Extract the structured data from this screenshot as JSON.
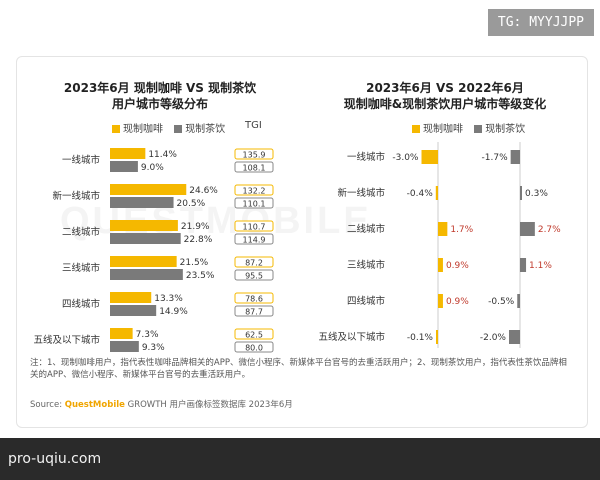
{
  "watermark": "QUESTMOBILE",
  "badge": "TG: MYYJJPP",
  "footer_text": "pro-uqiu.com",
  "colors": {
    "coffee": "#f5b800",
    "tea": "#7a7a7a",
    "pos": "#c0392b",
    "neg": "#333333"
  },
  "left": {
    "title_line1": "2023年6月 现制咖啡 VS 现制茶饮",
    "title_line2": "用户城市等级分布",
    "legend_coffee": "现制咖啡",
    "legend_tea": "现制茶饮",
    "tgi_label": "TGI"
  },
  "right": {
    "title_line1": "2023年6月 VS 2022年6月",
    "title_line2": "现制咖啡&现制茶饮用户城市等级变化",
    "legend_coffee": "现制咖啡",
    "legend_tea": "现制茶饮"
  },
  "chart_data": [
    {
      "type": "bar",
      "title": "2023年6月 现制咖啡 VS 现制茶饮 用户城市等级分布",
      "categories": [
        "一线城市",
        "新一线城市",
        "二线城市",
        "三线城市",
        "四线城市",
        "五线及以下城市"
      ],
      "series": [
        {
          "name": "现制咖啡",
          "values": [
            11.4,
            24.6,
            21.9,
            21.5,
            13.3,
            7.3
          ],
          "labels": [
            "11.4%",
            "24.6%",
            "21.9%",
            "21.5%",
            "13.3%",
            "7.3%"
          ],
          "tgi": [
            "135.9",
            "132.2",
            "110.7",
            "87.2",
            "78.6",
            "62.5"
          ]
        },
        {
          "name": "现制茶饮",
          "values": [
            9.0,
            20.5,
            22.8,
            23.5,
            14.9,
            9.3
          ],
          "labels": [
            "9.0%",
            "20.5%",
            "22.8%",
            "23.5%",
            "14.9%",
            "9.3%"
          ],
          "tgi": [
            "108.1",
            "110.1",
            "114.9",
            "95.5",
            "87.7",
            "80.0"
          ]
        }
      ]
    },
    {
      "type": "bar",
      "title": "2023年6月 VS 2022年6月 现制咖啡&现制茶饮用户城市等级变化",
      "categories": [
        "一线城市",
        "新一线城市",
        "二线城市",
        "三线城市",
        "四线城市",
        "五线及以下城市"
      ],
      "series": [
        {
          "name": "现制咖啡",
          "values": [
            -3.0,
            -0.4,
            1.7,
            0.9,
            0.9,
            -0.1
          ],
          "labels": [
            "-3.0%",
            "-0.4%",
            "1.7%",
            "0.9%",
            "0.9%",
            "-0.1%"
          ]
        },
        {
          "name": "现制茶饮",
          "values": [
            -1.7,
            0.3,
            2.7,
            1.1,
            -0.5,
            -2.0
          ],
          "labels": [
            "-1.7%",
            "0.3%",
            "2.7%",
            "1.1%",
            "-0.5%",
            "-2.0%"
          ]
        }
      ]
    }
  ],
  "note": "注：1、现制咖啡用户，指代表性咖啡品牌相关的APP、微信小程序、新媒体平台官号的去重活跃用户；2、现制茶饮用户，指代表性茶饮品牌相关的APP、微信小程序、新媒体平台官号的去重活跃用户。",
  "source_prefix": "Source: ",
  "source_brand": "QuestMobile",
  "source_suffix": " GROWTH 用户画像标签数据库 2023年6月"
}
